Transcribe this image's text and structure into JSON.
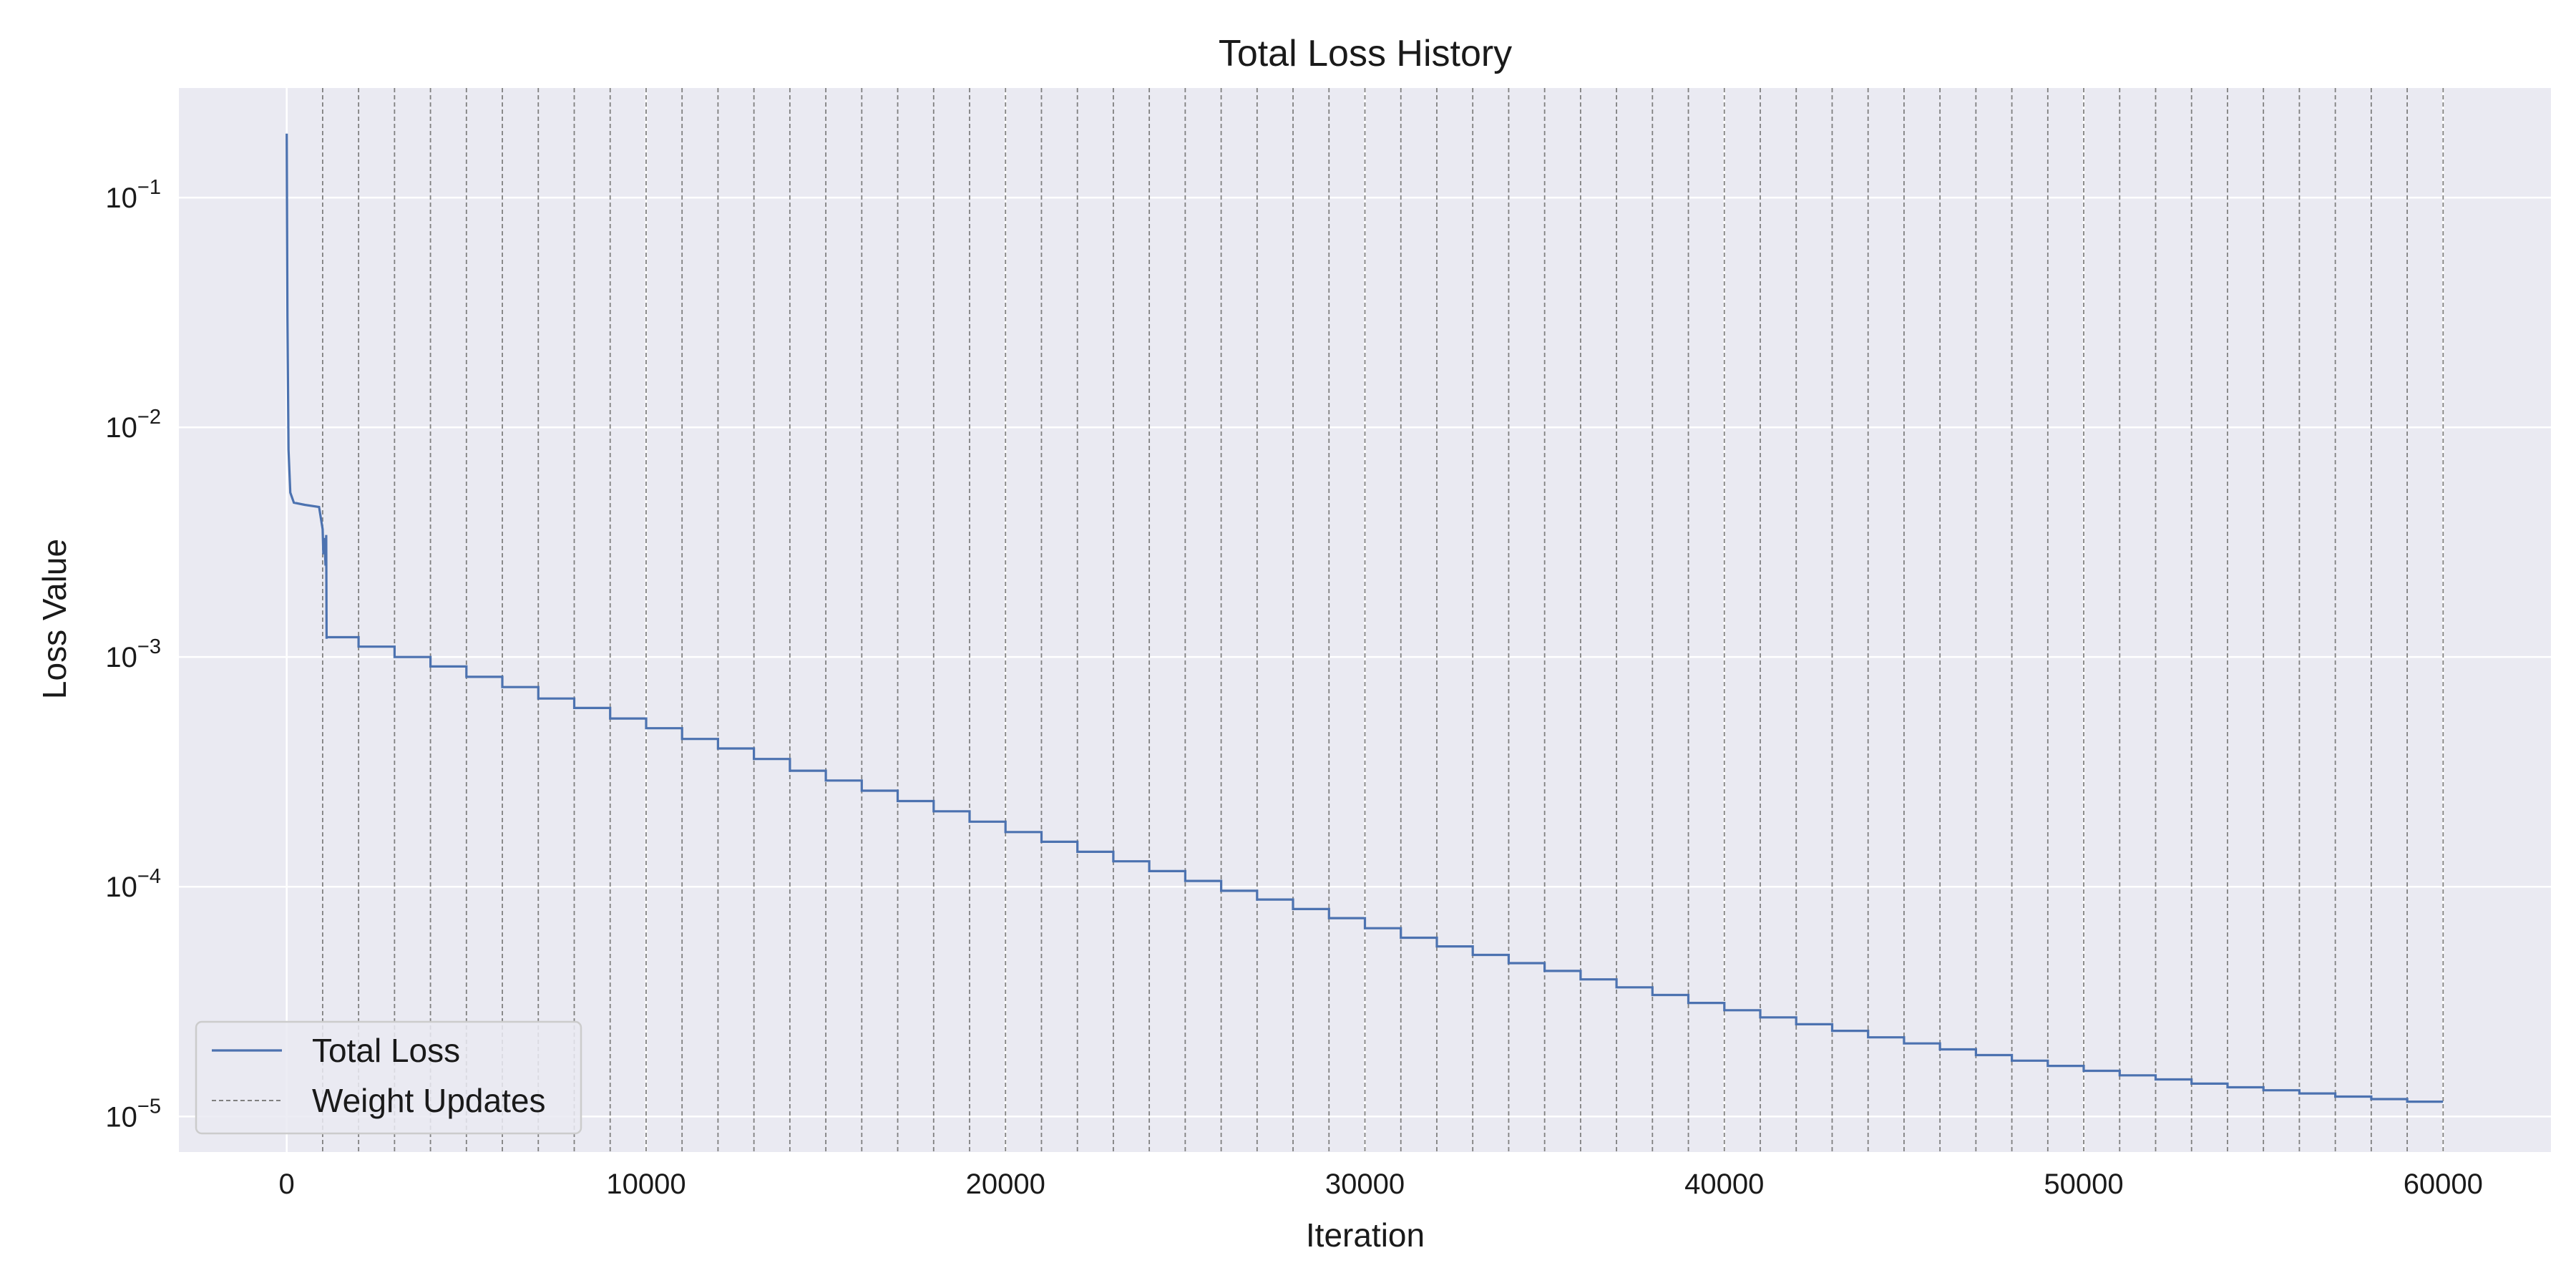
{
  "chart_data": {
    "type": "line",
    "title": "Total Loss History",
    "xlabel": "Iteration",
    "ylabel": "Loss Value",
    "xlim": [
      -3000,
      63000
    ],
    "ylim": [
      7e-06,
      0.3
    ],
    "yscale": "log",
    "grid": true,
    "legend_placement": "lower-left",
    "background_color": "#eaeaf2",
    "grid_color": "#ffffff",
    "xticks": [
      0,
      10000,
      20000,
      30000,
      40000,
      50000,
      60000
    ],
    "xtick_labels": [
      "0",
      "10000",
      "20000",
      "30000",
      "40000",
      "50000",
      "60000"
    ],
    "yticks": [
      {
        "value": 1e-05,
        "base": "10",
        "exp": "−5"
      },
      {
        "value": 0.0001,
        "base": "10",
        "exp": "−4"
      },
      {
        "value": 0.001,
        "base": "10",
        "exp": "−3"
      },
      {
        "value": 0.01,
        "base": "10",
        "exp": "−2"
      },
      {
        "value": 0.1,
        "base": "10",
        "exp": "−1"
      }
    ],
    "series": [
      {
        "name": "Total Loss",
        "color": "#4c72b0",
        "initial_points": [
          {
            "x": 0,
            "y": 0.19
          },
          {
            "x": 20,
            "y": 0.03
          },
          {
            "x": 50,
            "y": 0.008
          },
          {
            "x": 100,
            "y": 0.0052
          },
          {
            "x": 200,
            "y": 0.0047
          },
          {
            "x": 500,
            "y": 0.0046
          },
          {
            "x": 900,
            "y": 0.0045
          },
          {
            "x": 1000,
            "y": 0.0036
          },
          {
            "x": 1020,
            "y": 0.0028
          },
          {
            "x": 1050,
            "y": 0.0033
          },
          {
            "x": 1080,
            "y": 0.0025
          },
          {
            "x": 1100,
            "y": 0.0034
          },
          {
            "x": 1110,
            "y": 0.0012
          }
        ],
        "step_x_start": 1000,
        "step_x_interval": 1000,
        "step_x_end": 60000,
        "step_values": [
          0.00122,
          0.00111,
          0.001,
          0.00091,
          0.00082,
          0.00074,
          0.00066,
          0.0006,
          0.00054,
          0.00049,
          0.00044,
          0.0004,
          0.00036,
          0.00032,
          0.00029,
          0.000262,
          0.000236,
          0.000213,
          0.000192,
          0.000173,
          0.000157,
          0.000142,
          0.000129,
          0.000117,
          0.000106,
          9.6e-05,
          8.8e-05,
          8e-05,
          7.3e-05,
          6.6e-05,
          6e-05,
          5.5e-05,
          5.05e-05,
          4.65e-05,
          4.3e-05,
          3.95e-05,
          3.65e-05,
          3.38e-05,
          3.12e-05,
          2.9e-05,
          2.7e-05,
          2.52e-05,
          2.36e-05,
          2.21e-05,
          2.08e-05,
          1.96e-05,
          1.85e-05,
          1.75e-05,
          1.66e-05,
          1.58e-05,
          1.51e-05,
          1.45e-05,
          1.39e-05,
          1.34e-05,
          1.3e-05,
          1.26e-05,
          1.22e-05,
          1.19e-05,
          1.16e-05
        ]
      },
      {
        "name": "Weight Updates",
        "color": "#808080",
        "style": "dashed-vertical",
        "x_start": 1000,
        "x_interval": 1000,
        "x_end": 60000
      }
    ]
  }
}
